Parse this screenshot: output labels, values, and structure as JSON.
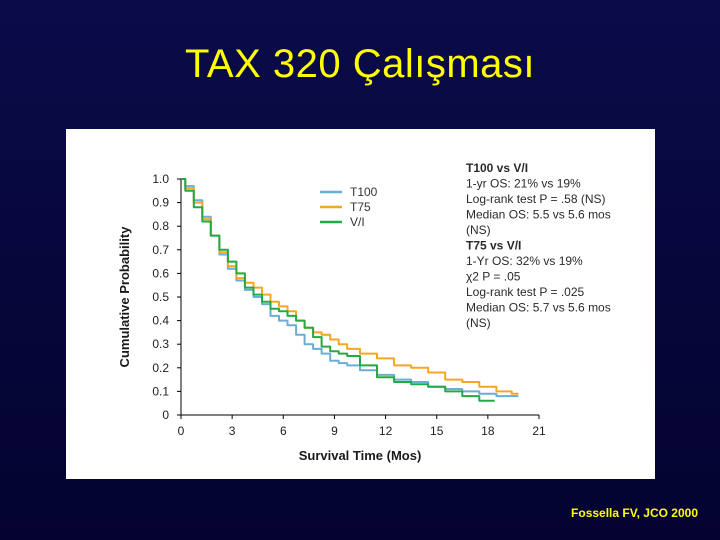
{
  "slide": {
    "title": "TAX 320 Çalışması",
    "citation": "Fossella FV, JCO 2000"
  },
  "chart_data": {
    "type": "line",
    "title": "",
    "xlabel": "Survival Time (Mos)",
    "ylabel": "Cumulative Probability",
    "xlim": [
      0,
      21
    ],
    "ylim": [
      0,
      1.0
    ],
    "x_ticks": [
      "0",
      "3",
      "6",
      "9",
      "12",
      "15",
      "18",
      "21"
    ],
    "y_ticks": [
      "0",
      "0.1",
      "0.2",
      "0.3",
      "0.4",
      "0.5",
      "0.6",
      "0.7",
      "0.8",
      "0.9",
      "1.0"
    ],
    "grid": false,
    "legend_position": "top-right",
    "series": [
      {
        "name": "T100",
        "color": "#6aaed6",
        "x": [
          0,
          0.5,
          1,
          1.5,
          2,
          2.5,
          3,
          3.5,
          4,
          4.5,
          5,
          5.5,
          6,
          6.5,
          7,
          7.5,
          8,
          8.5,
          9,
          9.5,
          10,
          11,
          12,
          13,
          14,
          15,
          16,
          17,
          18,
          19,
          19.8
        ],
        "y": [
          1.0,
          0.97,
          0.91,
          0.84,
          0.76,
          0.68,
          0.62,
          0.57,
          0.53,
          0.5,
          0.47,
          0.42,
          0.4,
          0.38,
          0.34,
          0.3,
          0.28,
          0.26,
          0.23,
          0.22,
          0.21,
          0.19,
          0.17,
          0.15,
          0.14,
          0.12,
          0.11,
          0.1,
          0.09,
          0.08,
          0.08
        ]
      },
      {
        "name": "T75",
        "color": "#f5a623",
        "x": [
          0,
          0.5,
          1,
          1.5,
          2,
          2.5,
          3,
          3.5,
          4,
          4.5,
          5,
          5.5,
          6,
          6.5,
          7,
          7.5,
          8,
          8.5,
          9,
          9.5,
          10,
          11,
          12,
          13,
          14,
          15,
          16,
          17,
          18,
          19,
          19.8
        ],
        "y": [
          1.0,
          0.96,
          0.9,
          0.83,
          0.76,
          0.69,
          0.63,
          0.58,
          0.56,
          0.54,
          0.51,
          0.48,
          0.46,
          0.44,
          0.4,
          0.37,
          0.35,
          0.34,
          0.32,
          0.3,
          0.28,
          0.26,
          0.24,
          0.21,
          0.2,
          0.18,
          0.15,
          0.14,
          0.12,
          0.1,
          0.09
        ]
      },
      {
        "name": "V/I",
        "color": "#22aa44",
        "x": [
          0,
          0.5,
          1,
          1.5,
          2,
          2.5,
          3,
          3.5,
          4,
          4.5,
          5,
          5.5,
          6,
          6.5,
          7,
          7.5,
          8,
          8.5,
          9,
          9.5,
          10,
          11,
          12,
          13,
          14,
          15,
          16,
          17,
          18,
          18.4
        ],
        "y": [
          1.0,
          0.95,
          0.88,
          0.82,
          0.76,
          0.7,
          0.65,
          0.6,
          0.54,
          0.51,
          0.48,
          0.45,
          0.44,
          0.42,
          0.4,
          0.37,
          0.33,
          0.29,
          0.27,
          0.26,
          0.25,
          0.21,
          0.16,
          0.14,
          0.13,
          0.12,
          0.1,
          0.08,
          0.06,
          0.06
        ]
      }
    ],
    "annotation_lines": [
      {
        "text": "T100 vs V/I",
        "bold": true
      },
      {
        "text": "1-yr OS: 21% vs 19%",
        "bold": false
      },
      {
        "text": "Log-rank test P = .58 (NS)",
        "bold": false
      },
      {
        "text": "Median OS: 5.5 vs 5.6 mos",
        "bold": false
      },
      {
        "text": "(NS)",
        "bold": false
      },
      {
        "text": "T75 vs V/I",
        "bold": true
      },
      {
        "text": "1-Yr OS: 32% vs 19%",
        "bold": false
      },
      {
        "text": "χ2 P = .05",
        "bold": false
      },
      {
        "text": "Log-rank test P = .025",
        "bold": false
      },
      {
        "text": "Median OS: 5.7 vs 5.6 mos",
        "bold": false
      },
      {
        "text": "(NS)",
        "bold": false
      }
    ]
  }
}
